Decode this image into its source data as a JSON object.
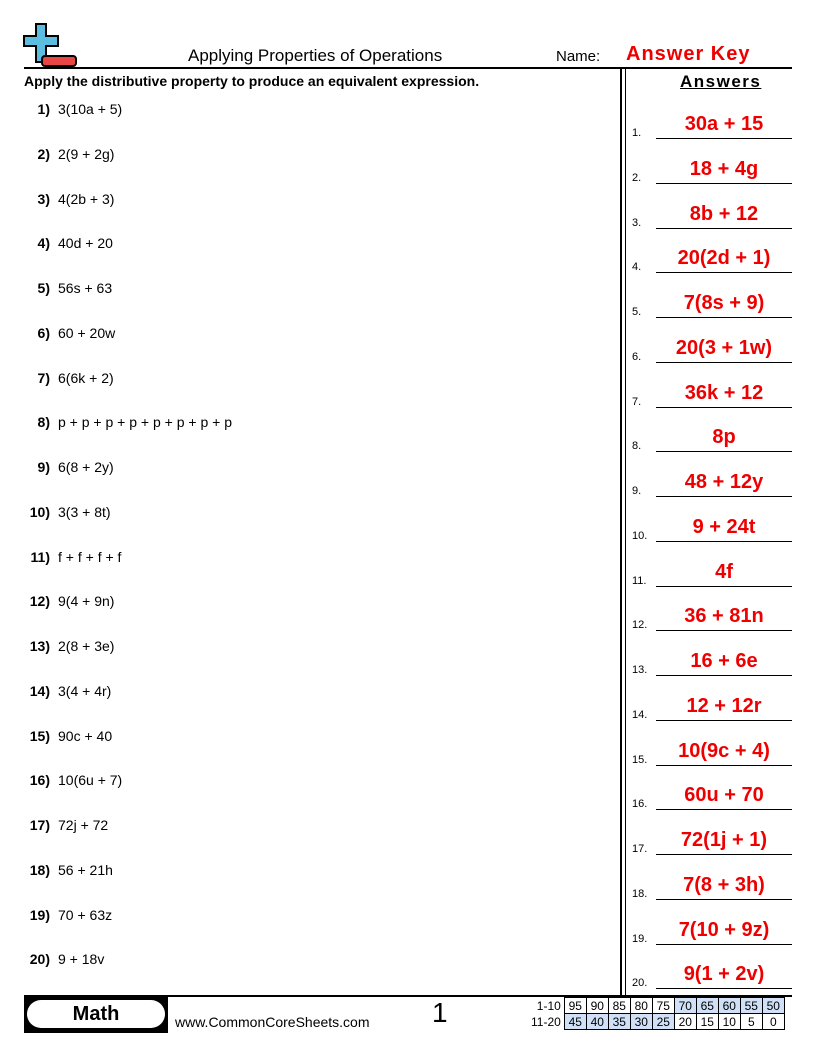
{
  "header": {
    "title": "Applying Properties of Operations",
    "name_label": "Name:",
    "name_value": "Answer Key"
  },
  "instructions": "Apply the distributive property to produce an equivalent expression.",
  "answers_heading": "Answers",
  "problems": [
    {
      "n": "1)",
      "q": "3(10a + 5)",
      "a": "30a + 15"
    },
    {
      "n": "2)",
      "q": "2(9 + 2g)",
      "a": "18 + 4g"
    },
    {
      "n": "3)",
      "q": "4(2b + 3)",
      "a": "8b + 12"
    },
    {
      "n": "4)",
      "q": "40d + 20",
      "a": "20(2d + 1)"
    },
    {
      "n": "5)",
      "q": "56s + 63",
      "a": "7(8s + 9)"
    },
    {
      "n": "6)",
      "q": "60 + 20w",
      "a": "20(3 + 1w)"
    },
    {
      "n": "7)",
      "q": "6(6k + 2)",
      "a": "36k + 12"
    },
    {
      "n": "8)",
      "q": "p + p + p + p + p + p + p + p",
      "a": "8p"
    },
    {
      "n": "9)",
      "q": "6(8 + 2y)",
      "a": "48 + 12y"
    },
    {
      "n": "10)",
      "q": "3(3 + 8t)",
      "a": "9 + 24t"
    },
    {
      "n": "11)",
      "q": "f + f + f + f",
      "a": "4f"
    },
    {
      "n": "12)",
      "q": "9(4 + 9n)",
      "a": "36 + 81n"
    },
    {
      "n": "13)",
      "q": "2(8 + 3e)",
      "a": "16 + 6e"
    },
    {
      "n": "14)",
      "q": "3(4 + 4r)",
      "a": "12 + 12r"
    },
    {
      "n": "15)",
      "q": "90c + 40",
      "a": "10(9c + 4)"
    },
    {
      "n": "16)",
      "q": "10(6u + 7)",
      "a": "60u + 70"
    },
    {
      "n": "17)",
      "q": "72j + 72",
      "a": "72(1j + 1)"
    },
    {
      "n": "18)",
      "q": "56 + 21h",
      "a": "7(8 + 3h)"
    },
    {
      "n": "19)",
      "q": "70 + 63z",
      "a": "7(10 + 9z)"
    },
    {
      "n": "20)",
      "q": "9 + 18v",
      "a": "9(1 + 2v)"
    }
  ],
  "footer": {
    "subject": "Math",
    "site": "www.CommonCoreSheets.com",
    "page": "1",
    "score_rows": [
      {
        "label": "1-10",
        "values": [
          "95",
          "90",
          "85",
          "80",
          "75",
          "70",
          "65",
          "60",
          "55",
          "50"
        ],
        "shaded": [
          false,
          false,
          false,
          false,
          false,
          true,
          true,
          true,
          true,
          true
        ]
      },
      {
        "label": "11-20",
        "values": [
          "45",
          "40",
          "35",
          "30",
          "25",
          "20",
          "15",
          "10",
          "5",
          "0"
        ],
        "shaded": [
          true,
          true,
          true,
          true,
          true,
          false,
          false,
          false,
          false,
          false
        ]
      }
    ]
  },
  "colors": {
    "answer": "#ee0000",
    "shade": "#cfe0f7",
    "logo_plus": "#5bbde0",
    "logo_minus": "#e84545"
  }
}
